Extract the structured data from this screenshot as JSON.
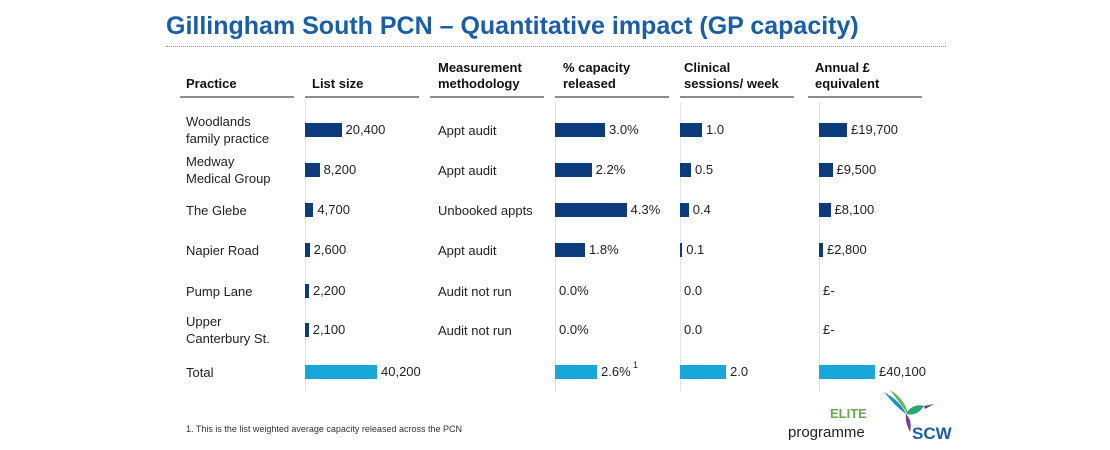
{
  "title": "Gillingham South PCN – Quantitative impact (GP capacity)",
  "headers": {
    "practice": "Practice",
    "list_size": "List size",
    "methodology_l1": "Measurement",
    "methodology_l2": "methodology",
    "capacity_l1": "% capacity",
    "capacity_l2": "released",
    "sessions_l1": "Clinical",
    "sessions_l2": "sessions/ week",
    "annual_l1": "Annual £",
    "annual_l2": "equivalent"
  },
  "chart_data": {
    "type": "table",
    "columns": [
      "Practice",
      "List size",
      "Measurement methodology",
      "% capacity released",
      "Clinical sessions/ week",
      "Annual £ equivalent"
    ],
    "rows": [
      {
        "practice_l1": "Woodlands",
        "practice_l2": "family practice",
        "list_size": 20400,
        "list_label": "20,400",
        "method": "Appt audit",
        "capacity": 3.0,
        "capacity_label": "3.0%",
        "sessions": 1.0,
        "sessions_label": "1.0",
        "annual": 19700,
        "annual_label": "£19,700"
      },
      {
        "practice_l1": "Medway",
        "practice_l2": "Medical Group",
        "list_size": 8200,
        "list_label": "8,200",
        "method": "Appt audit",
        "capacity": 2.2,
        "capacity_label": "2.2%",
        "sessions": 0.5,
        "sessions_label": "0.5",
        "annual": 9500,
        "annual_label": "£9,500"
      },
      {
        "practice_l1": "The Glebe",
        "practice_l2": "",
        "list_size": 4700,
        "list_label": "4,700",
        "method": "Unbooked appts",
        "capacity": 4.3,
        "capacity_label": "4.3%",
        "sessions": 0.4,
        "sessions_label": "0.4",
        "annual": 8100,
        "annual_label": "£8,100"
      },
      {
        "practice_l1": "Napier Road",
        "practice_l2": "",
        "list_size": 2600,
        "list_label": "2,600",
        "method": "Appt audit",
        "capacity": 1.8,
        "capacity_label": "1.8%",
        "sessions": 0.1,
        "sessions_label": "0.1",
        "annual": 2800,
        "annual_label": "£2,800"
      },
      {
        "practice_l1": "Pump Lane",
        "practice_l2": "",
        "list_size": 2200,
        "list_label": "2,200",
        "method": "Audit not run",
        "capacity": 0.0,
        "capacity_label": "0.0%",
        "sessions": 0.0,
        "sessions_label": "0.0",
        "annual": 0,
        "annual_label": "£-"
      },
      {
        "practice_l1": "Upper",
        "practice_l2": "Canterbury St.",
        "list_size": 2100,
        "list_label": "2,100",
        "method": "Audit not run",
        "capacity": 0.0,
        "capacity_label": "0.0%",
        "sessions": 0.0,
        "sessions_label": "0.0",
        "annual": 0,
        "annual_label": "£-"
      }
    ],
    "total": {
      "label": "Total",
      "list_size": 40200,
      "list_label": "40,200",
      "capacity": 2.6,
      "capacity_label": "2.6%",
      "capacity_footnote_mark": "1",
      "sessions": 2.0,
      "sessions_label": "2.0",
      "annual": 40100,
      "annual_label": "£40,100"
    },
    "colors": {
      "practice_bar": "#0b3b7a",
      "total_bar": "#17a7d8"
    }
  },
  "footnote": "1. This is the list weighted average capacity released across the PCN",
  "logo": {
    "elite": "ELITE",
    "programme": "programme",
    "brand": "SCW",
    "icon": "hummingbird-icon"
  }
}
